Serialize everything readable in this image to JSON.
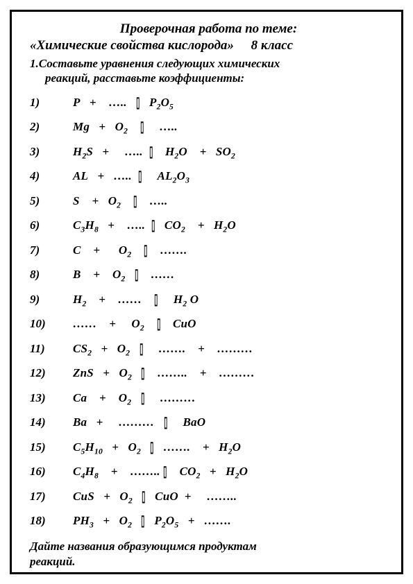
{
  "title_line1": "Проверочная работа по теме:",
  "title_topic": "«Химические свойства кислорода»",
  "grade": "8 класс",
  "task_line1": "1.Составьте уравнения следующих химических",
  "task_line2": "реакций, расставьте коэффициенты:",
  "equations": [
    {
      "num": "1)",
      "body": "P&nbsp;&nbsp;&nbsp;+&nbsp;&nbsp;&nbsp;&nbsp;…..&nbsp;&nbsp;&nbsp;<span class=\"arrow\">▯</span>&nbsp;&nbsp;&nbsp;P<sub>2</sub>O<sub>5</sub>"
    },
    {
      "num": "2)",
      "body": "Mg&nbsp;&nbsp;&nbsp;+&nbsp;&nbsp;&nbsp;O<sub>2</sub>&nbsp;&nbsp;&nbsp;&nbsp;<span class=\"arrow\">▯</span>&nbsp;&nbsp;&nbsp;&nbsp;&nbsp;….."
    },
    {
      "num": "3)",
      "body": "H<sub>2</sub>S&nbsp;&nbsp;&nbsp;+&nbsp;&nbsp;&nbsp;&nbsp;&nbsp;…..&nbsp;&nbsp;<span class=\"arrow\">▯</span>&nbsp;&nbsp;&nbsp;&nbsp;H<sub>2</sub>O&nbsp;&nbsp;&nbsp;&nbsp;+&nbsp;&nbsp;&nbsp;SO<sub>2</sub>"
    },
    {
      "num": "4)",
      "body": "AL&nbsp;&nbsp;&nbsp;+&nbsp;&nbsp;&nbsp;…..&nbsp;&nbsp;<span class=\"arrow\">▯</span>&nbsp;&nbsp;&nbsp;&nbsp;&nbsp;AL<sub>2</sub>O<sub>3</sub>"
    },
    {
      "num": "5)",
      "body": "S&nbsp;&nbsp;&nbsp;&nbsp;+&nbsp;&nbsp;&nbsp;O<sub>2</sub>&nbsp;&nbsp;&nbsp;&nbsp;<span class=\"arrow\">▯</span>&nbsp;&nbsp;&nbsp;&nbsp;….."
    },
    {
      "num": "6)",
      "body": "C<sub>3</sub>H<sub>8</sub>&nbsp;&nbsp;&nbsp;+&nbsp;&nbsp;&nbsp;&nbsp;…..&nbsp;&nbsp;<span class=\"arrow\">▯</span>&nbsp;&nbsp;&nbsp;CO<sub>2</sub>&nbsp;&nbsp;&nbsp;&nbsp;+&nbsp;&nbsp;&nbsp;H<sub>2</sub>O"
    },
    {
      "num": "7)",
      "body": "C&nbsp;&nbsp;&nbsp;&nbsp;+&nbsp;&nbsp;&nbsp;&nbsp;&nbsp;&nbsp;O<sub>2</sub>&nbsp;&nbsp;&nbsp;&nbsp;<span class=\"arrow\">▯</span>&nbsp;&nbsp;&nbsp;&nbsp;……."
    },
    {
      "num": "8)",
      "body": "B&nbsp;&nbsp;&nbsp;&nbsp;+&nbsp;&nbsp;&nbsp;&nbsp;O<sub>2</sub>&nbsp;&nbsp;&nbsp;<span class=\"arrow\">▯</span>&nbsp;&nbsp;&nbsp;&nbsp;……"
    },
    {
      "num": "9)",
      "body": "H<sub>2</sub>&nbsp;&nbsp;&nbsp;&nbsp;+&nbsp;&nbsp;&nbsp;&nbsp;……&nbsp;&nbsp;&nbsp;&nbsp;<span class=\"arrow\">▯</span>&nbsp;&nbsp;&nbsp;&nbsp;&nbsp;H<sub>2</sub> O"
    },
    {
      "num": "10)",
      "body": "……&nbsp;&nbsp;&nbsp;&nbsp;+&nbsp;&nbsp;&nbsp;&nbsp;&nbsp;O<sub>2</sub>&nbsp;&nbsp;&nbsp;&nbsp;<span class=\"arrow\">▯</span>&nbsp;&nbsp;&nbsp;&nbsp;CuO"
    },
    {
      "num": "11)",
      "body": "CS<sub>2</sub>&nbsp;&nbsp;&nbsp;+&nbsp;&nbsp;&nbsp;O<sub>2</sub>&nbsp;&nbsp;&nbsp;<span class=\"arrow\">▯</span>&nbsp;&nbsp;&nbsp;&nbsp;&nbsp;…….&nbsp;&nbsp;&nbsp;&nbsp;+&nbsp;&nbsp;&nbsp;&nbsp;………"
    },
    {
      "num": "12)",
      "body": "ZnS&nbsp;&nbsp;&nbsp;+&nbsp;&nbsp;&nbsp;O<sub>2</sub>&nbsp;&nbsp;&nbsp;<span class=\"arrow\">▯</span>&nbsp;&nbsp;&nbsp;&nbsp;……..&nbsp;&nbsp;&nbsp;&nbsp;+&nbsp;&nbsp;&nbsp;&nbsp;………"
    },
    {
      "num": "13)",
      "body": "Ca&nbsp;&nbsp;&nbsp;&nbsp;+&nbsp;&nbsp;&nbsp;&nbsp;O<sub>2</sub>&nbsp;&nbsp;&nbsp;<span class=\"arrow\">▯</span>&nbsp;&nbsp;&nbsp;&nbsp;&nbsp;………"
    },
    {
      "num": "14)",
      "body": "Ba&nbsp;&nbsp;&nbsp;+&nbsp;&nbsp;&nbsp;&nbsp;&nbsp;………&nbsp;&nbsp;&nbsp;<span class=\"arrow\">▯</span>&nbsp;&nbsp;&nbsp;&nbsp;&nbsp;BaO"
    },
    {
      "num": "15)",
      "body": "C<sub>5</sub>H<sub>10</sub>&nbsp;&nbsp;&nbsp;+&nbsp;&nbsp;&nbsp;O<sub>2</sub>&nbsp;&nbsp;&nbsp;<span class=\"arrow\">▯</span>&nbsp;&nbsp;&nbsp;…….&nbsp;&nbsp;&nbsp;&nbsp;+&nbsp;&nbsp;&nbsp;H<sub>2</sub>O"
    },
    {
      "num": "16)",
      "body": "C<sub>4</sub>H<sub>8</sub>&nbsp;&nbsp;&nbsp;&nbsp;+&nbsp;&nbsp;&nbsp;&nbsp;……..&nbsp;<span class=\"arrow\">▯</span>&nbsp;&nbsp;&nbsp;&nbsp;CO<sub>2</sub>&nbsp;&nbsp;&nbsp;+&nbsp;&nbsp;&nbsp;H<sub>2</sub>O"
    },
    {
      "num": "17)",
      "body": "CuS&nbsp;&nbsp;&nbsp;+&nbsp;&nbsp;&nbsp;O<sub>2</sub>&nbsp;&nbsp;&nbsp;<span class=\"arrow\">▯</span>&nbsp;&nbsp;&nbsp;CuO&nbsp;&nbsp;+&nbsp;&nbsp;&nbsp;&nbsp;&nbsp;…….."
    },
    {
      "num": "18)",
      "body": "PH<sub>3</sub>&nbsp;&nbsp;&nbsp;+&nbsp;&nbsp;&nbsp;O<sub>2</sub>&nbsp;&nbsp;&nbsp;<span class=\"arrow\">▯</span>&nbsp;&nbsp;&nbsp;P<sub>2</sub>O<sub>5</sub>&nbsp;&nbsp;&nbsp;+&nbsp;&nbsp;&nbsp;……."
    }
  ],
  "footer_line1": "Дайте названия образующимся продуктам",
  "footer_line2": "реакций."
}
